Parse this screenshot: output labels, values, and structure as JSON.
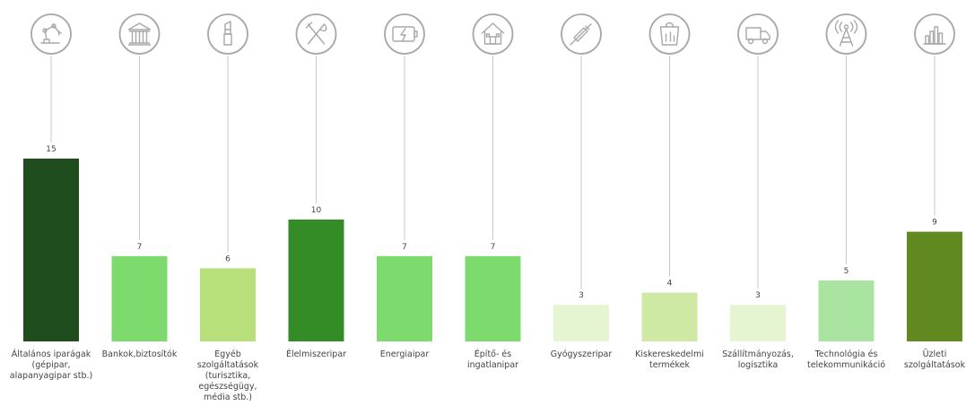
{
  "chart_data": {
    "type": "bar",
    "categories": [
      "Általános iparágak\n(gépipar,\nalapanyagipar stb.)",
      "Bankok,biztosítók",
      "Egyéb\nszolgáltatások\n(turisztika,\negészségügy,\nmédia stb.)",
      "Élelmiszeripar",
      "Energiaipar",
      "Építő- és\ningatlanipar",
      "Gyógyszeripar",
      "Kiskereskedelmi\ntermékek",
      "Szállítmányozás,\nlogisztika",
      "Technológia és\ntelekommunikáció",
      "Üzleti\nszolgáltatások"
    ],
    "values": [
      15,
      7,
      6,
      10,
      7,
      7,
      3,
      4,
      3,
      5,
      9
    ],
    "bar_colors": [
      "#1f4d1d",
      "#7ddb6d",
      "#b8e07a",
      "#348c26",
      "#7ddb6d",
      "#7ddb6d",
      "#e5f5d2",
      "#cde9a3",
      "#e5f5d2",
      "#a9e5a0",
      "#608a1f"
    ],
    "icons": [
      "robot-arm-icon",
      "bank-icon",
      "lipstick-icon",
      "fork-knife-icon",
      "battery-icon",
      "house-icon",
      "syringe-icon",
      "shopping-bag-icon",
      "truck-icon",
      "antenna-tower-icon",
      "bar-chart-icon"
    ],
    "title": "",
    "xlabel": "",
    "ylabel": "",
    "ylim": [
      0,
      15
    ],
    "grid": false,
    "legend": "none"
  }
}
